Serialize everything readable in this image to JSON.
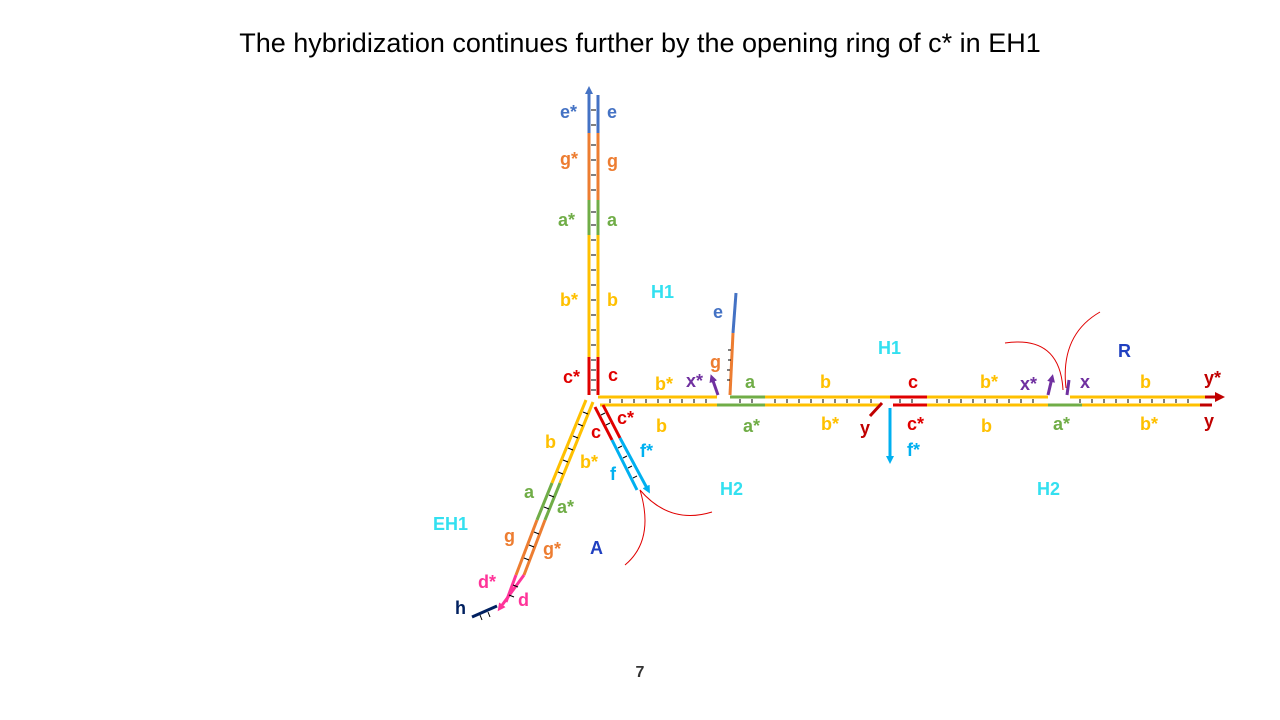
{
  "title": "The hybridization continues further by the opening ring of c* in EH1",
  "slide_number": "7",
  "colors": {
    "e": "#4472c4",
    "g": "#ed7d31",
    "a": "#70ad47",
    "b": "#ffc000",
    "c": "#e00000",
    "x": "#7030a0",
    "y": "#c00000",
    "f": "#00b0f0",
    "d": "#ff3399",
    "h": "#002060",
    "complex_label": "#33e0f0",
    "strand_label": "#2040c0"
  },
  "domains": {
    "e_star": "e*",
    "e": "e",
    "g_star": "g*",
    "g": "g",
    "a_star": "a*",
    "a": "a",
    "b_star": "b*",
    "b": "b",
    "c_star": "c*",
    "c": "c",
    "x_star": "x*",
    "x": "x",
    "y_star": "y*",
    "y": "y",
    "f_star": "f*",
    "f": "f",
    "d_star": "d*",
    "d": "d",
    "h": "h"
  },
  "complexes": {
    "h1": "H1",
    "h2": "H2",
    "eh1": "EH1",
    "r": "R",
    "a": "A"
  }
}
